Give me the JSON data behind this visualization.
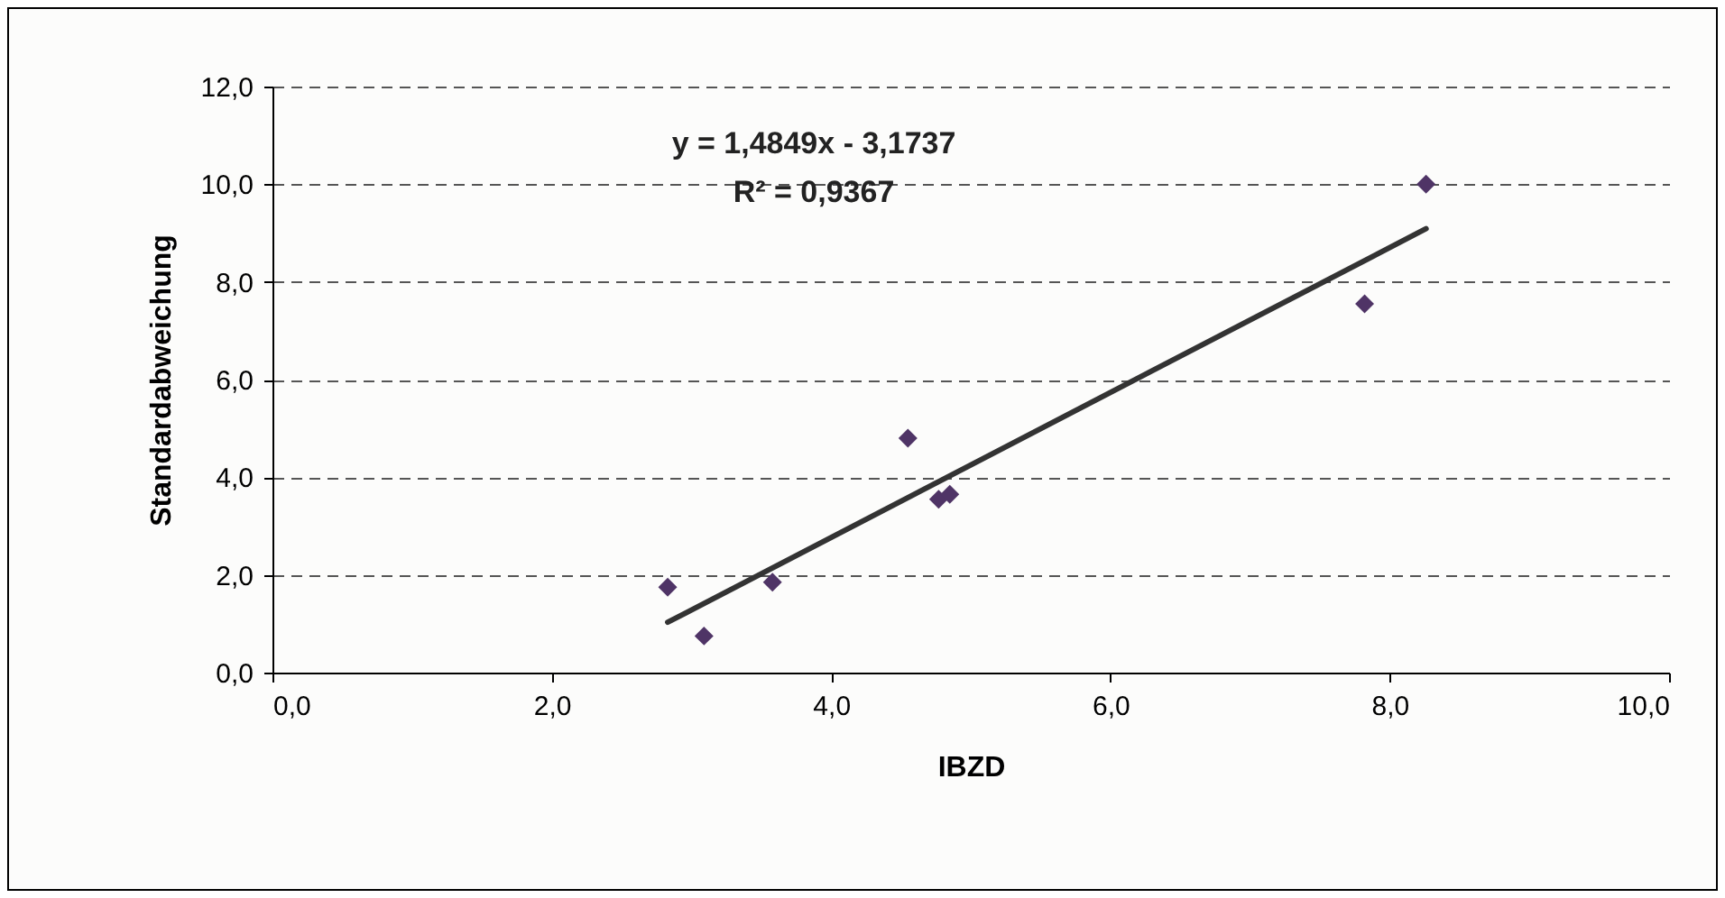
{
  "chart_data": {
    "type": "scatter",
    "xlabel": "IBZD",
    "ylabel": "Standardabweichung",
    "series": [
      {
        "marker": "diamond",
        "color": "#4f3466",
        "x": [
          2.83,
          3.09,
          3.58,
          4.55,
          4.77,
          4.85,
          7.82,
          8.26
        ],
        "values": [
          1.75,
          0.75,
          1.85,
          4.8,
          3.55,
          3.65,
          7.55,
          10.0
        ]
      },
      {
        "type": "line",
        "line_style": "solid",
        "color": "#333333",
        "x": [
          2.83,
          8.26
        ],
        "values": [
          1.03,
          9.09
        ]
      }
    ],
    "annotations": [
      "y = 1,4849x - 3,1737",
      "R² = 0,9367"
    ],
    "xlim": [
      0,
      10
    ],
    "ylim": [
      0,
      12
    ],
    "xticks": [
      {
        "value": 0,
        "label": "0,0"
      },
      {
        "value": 2,
        "label": "2,0"
      },
      {
        "value": 4,
        "label": "4,0"
      },
      {
        "value": 6,
        "label": "6,0"
      },
      {
        "value": 8,
        "label": "8,0"
      },
      {
        "value": 10,
        "label": "10,0"
      }
    ],
    "yticks": [
      {
        "value": 0,
        "label": "0,0"
      },
      {
        "value": 2,
        "label": "2,0"
      },
      {
        "value": 4,
        "label": "4,0"
      },
      {
        "value": 6,
        "label": "6,0"
      },
      {
        "value": 8,
        "label": "8,0"
      },
      {
        "value": 10,
        "label": "10,0"
      },
      {
        "value": 12,
        "label": "12,0"
      }
    ],
    "grid": "y"
  }
}
